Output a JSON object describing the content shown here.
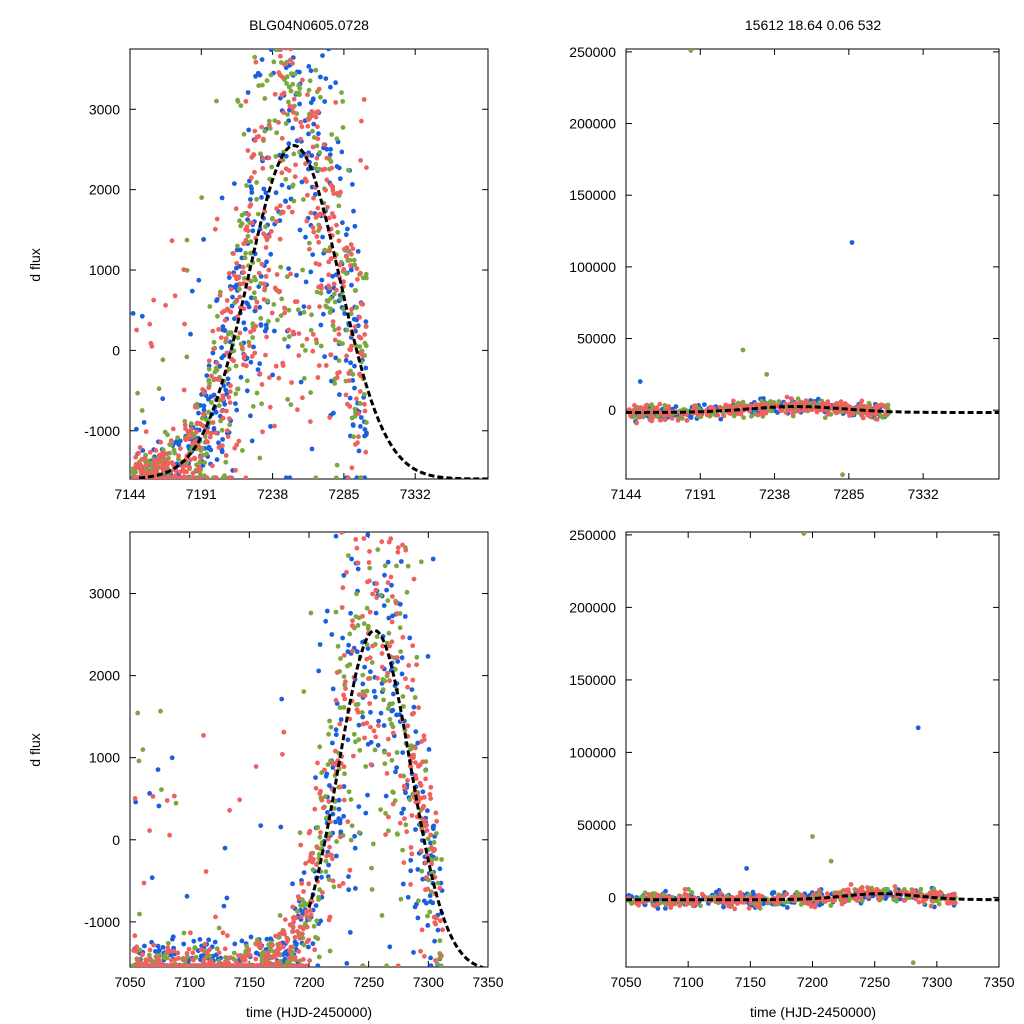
{
  "figure": {
    "header_left": "BLG04N0605.0728",
    "header_right": "15612  18.64  0.06  532",
    "ylabel": "d flux",
    "xlabel": "time (HJD-2450000)"
  },
  "colors": {
    "series_blue": "#1a5fe0",
    "series_green": "#7aa83e",
    "series_red": "#f0605e",
    "model": "#000000"
  },
  "chart_data": [
    {
      "id": "top-left",
      "type": "scatter",
      "title": "BLG04N0605.0728",
      "xlabel": "",
      "ylabel": "d flux",
      "xlim": [
        7144,
        7380
      ],
      "ylim": [
        -1600,
        3750
      ],
      "xticks": [
        7144,
        7191,
        7238,
        7285,
        7332
      ],
      "yticks": [
        -1000,
        0,
        1000,
        2000,
        3000
      ],
      "model": {
        "t0": 7252,
        "peak": 2550,
        "tE": 30,
        "base": -1600,
        "xfrom": 7150,
        "dashed": true
      },
      "series": [
        {
          "name": "blue",
          "color": "#1a5fe0",
          "n": 500,
          "seed": 11
        },
        {
          "name": "green",
          "color": "#7aa83e",
          "n": 450,
          "seed": 23
        },
        {
          "name": "red",
          "color": "#f0605e",
          "n": 550,
          "seed": 37
        }
      ]
    },
    {
      "id": "top-right",
      "type": "scatter",
      "title": "15612  18.64  0.06  532",
      "xlabel": "",
      "ylabel": "",
      "xlim": [
        7144,
        7380
      ],
      "ylim": [
        -48000,
        252000
      ],
      "xticks": [
        7144,
        7191,
        7238,
        7285,
        7332
      ],
      "yticks": [
        0,
        50000,
        100000,
        150000,
        200000,
        250000
      ],
      "model": {
        "t0": 7252,
        "peak": 2550,
        "tE": 30,
        "base": -1600,
        "xfrom": 7144,
        "dashed": true
      },
      "outliers": [
        {
          "x": 7185,
          "y": 251000,
          "series": "green"
        },
        {
          "x": 7287,
          "y": 117000,
          "series": "blue"
        },
        {
          "x": 7218,
          "y": 42000,
          "series": "green"
        },
        {
          "x": 7153,
          "y": 20000,
          "series": "blue"
        },
        {
          "x": 7233,
          "y": 25000,
          "series": "green"
        },
        {
          "x": 7281,
          "y": -45000,
          "series": "green"
        }
      ],
      "series": [
        {
          "name": "blue",
          "color": "#1a5fe0",
          "n": 200,
          "seed": 41
        },
        {
          "name": "green",
          "color": "#7aa83e",
          "n": 180,
          "seed": 53
        },
        {
          "name": "red",
          "color": "#f0605e",
          "n": 220,
          "seed": 67
        }
      ]
    },
    {
      "id": "bottom-left",
      "type": "scatter",
      "title": "",
      "xlabel": "time (HJD-2450000)",
      "ylabel": "d flux",
      "xlim": [
        7050,
        7350
      ],
      "ylim": [
        -1550,
        3750
      ],
      "xticks": [
        7050,
        7100,
        7150,
        7200,
        7250,
        7300,
        7350
      ],
      "yticks": [
        -1000,
        0,
        1000,
        2000,
        3000
      ],
      "model": {
        "t0": 7255,
        "peak": 2550,
        "tE": 30,
        "base": -1600,
        "xfrom": 7200,
        "dashed": true
      },
      "series": [
        {
          "name": "blue",
          "color": "#1a5fe0",
          "n": 550,
          "seed": 71
        },
        {
          "name": "green",
          "color": "#7aa83e",
          "n": 500,
          "seed": 83
        },
        {
          "name": "red",
          "color": "#f0605e",
          "n": 550,
          "seed": 97
        }
      ]
    },
    {
      "id": "bottom-right",
      "type": "scatter",
      "title": "",
      "xlabel": "time (HJD-2450000)",
      "ylabel": "",
      "xlim": [
        7050,
        7350
      ],
      "ylim": [
        -48000,
        252000
      ],
      "xticks": [
        7050,
        7100,
        7150,
        7200,
        7250,
        7300,
        7350
      ],
      "yticks": [
        0,
        50000,
        100000,
        150000,
        200000,
        250000
      ],
      "model": {
        "t0": 7255,
        "peak": 2550,
        "tE": 30,
        "base": -1600,
        "xfrom": 7050,
        "dashed": true
      },
      "outliers": [
        {
          "x": 7193,
          "y": 251000,
          "series": "green"
        },
        {
          "x": 7285,
          "y": 117000,
          "series": "blue"
        },
        {
          "x": 7200,
          "y": 42000,
          "series": "green"
        },
        {
          "x": 7147,
          "y": 20000,
          "series": "blue"
        },
        {
          "x": 7215,
          "y": 25000,
          "series": "green"
        },
        {
          "x": 7281,
          "y": -45000,
          "series": "green"
        }
      ],
      "series": [
        {
          "name": "blue",
          "color": "#1a5fe0",
          "n": 240,
          "seed": 101
        },
        {
          "name": "green",
          "color": "#7aa83e",
          "n": 200,
          "seed": 113
        },
        {
          "name": "red",
          "color": "#f0605e",
          "n": 240,
          "seed": 127
        }
      ]
    }
  ]
}
